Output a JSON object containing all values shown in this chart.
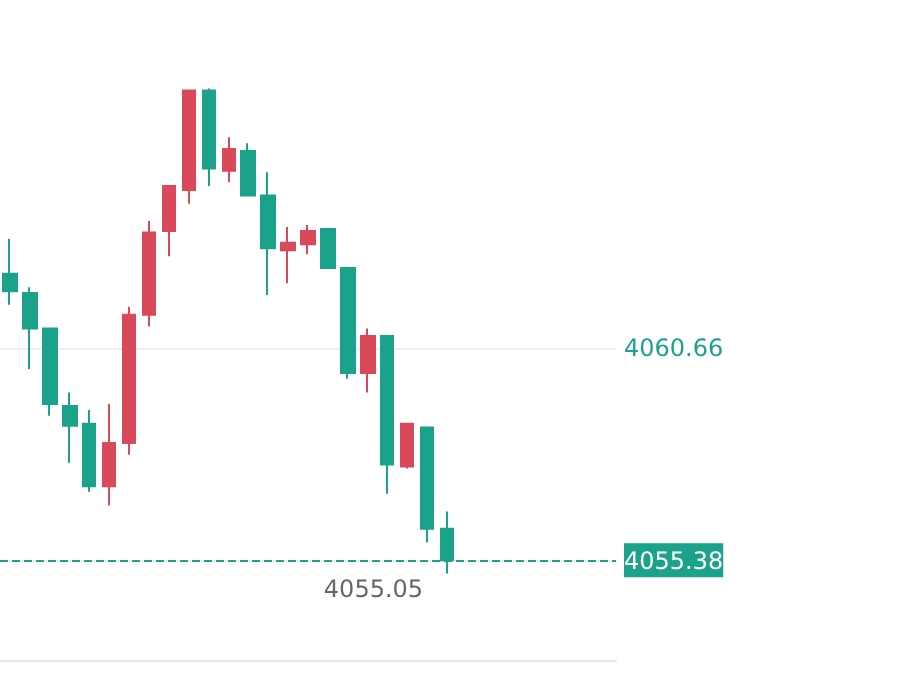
{
  "chart_data": {
    "type": "candlestick",
    "categories": [
      null,
      null,
      null,
      null,
      null,
      null,
      null,
      null,
      null,
      null,
      null,
      null,
      null,
      null,
      null,
      null,
      null,
      null,
      null,
      null,
      null,
      null,
      null,
      null,
      null,
      null,
      null,
      null,
      null,
      null,
      null
    ],
    "ohlc": [
      [
        4062.5,
        4063.37,
        4061.73,
        4062.06
      ],
      [
        4062.02,
        4062.16,
        4060.13,
        4061.14
      ],
      [
        4061.14,
        4061.14,
        4058.97,
        4059.26
      ],
      [
        4059.21,
        4059.55,
        4057.8,
        4058.72
      ],
      [
        4058.77,
        4059.11,
        4057.08,
        4057.22
      ],
      [
        4057.22,
        4059.26,
        4056.74,
        4058.29
      ],
      [
        4058.29,
        4061.68,
        4058.0,
        4061.48
      ],
      [
        4061.48,
        4063.81,
        4061.19,
        4063.52
      ],
      [
        4063.56,
        4064.68,
        4062.93,
        4064.68
      ],
      [
        4064.58,
        4067.05,
        4064.24,
        4067.05
      ],
      [
        4067.05,
        4067.1,
        4064.68,
        4065.11
      ],
      [
        4065.06,
        4065.89,
        4064.77,
        4065.6
      ],
      [
        4065.55,
        4065.74,
        4064.44,
        4064.44
      ],
      [
        4064.44,
        4065.02,
        4061.97,
        4063.13
      ],
      [
        4063.08,
        4063.66,
        4062.26,
        4063.27
      ],
      [
        4063.23,
        4063.71,
        4062.98,
        4063.56
      ],
      [
        4063.61,
        4063.61,
        4062.64,
        4062.64
      ],
      [
        4062.64,
        4062.64,
        4059.89,
        4060.03
      ],
      [
        4060.03,
        4061.14,
        4059.55,
        4060.95
      ],
      [
        4060.95,
        4060.95,
        4057.03,
        4057.76
      ],
      [
        4057.71,
        4058.77,
        4057.66,
        4058.77
      ],
      [
        4058.68,
        4058.68,
        4055.82,
        4056.16
      ],
      [
        4056.16,
        4056.59,
        4055.05,
        4055.38
      ],
      null,
      null,
      null,
      null,
      null,
      null,
      null,
      null
    ],
    "colors": [
      "#1aa38a",
      "#1aa38a",
      "#1aa38a",
      "#1aa38a",
      "#1aa38a",
      "#d9495a",
      "#d9495a",
      "#d9495a",
      "#d9495a",
      "#d9495a",
      "#1aa38a",
      "#d9495a",
      "#1aa38a",
      "#1aa38a",
      "#d9495a",
      "#d9495a",
      "#1aa38a",
      "#1aa38a",
      "#d9495a",
      "#1aa38a",
      "#d9495a",
      "#1aa38a",
      "#1aa38a",
      null,
      null,
      null,
      null,
      null,
      null,
      null,
      null
    ],
    "ylim": [
      4052.9,
      4069.3
    ],
    "yticks": [
      4055.38,
      4060.66
    ],
    "grid": "y",
    "ref_lines": [
      {
        "axis": "y",
        "value": 4055.38,
        "color": "#1aa38a",
        "line_style": "dashed"
      }
    ],
    "annotations": [
      "4055.05"
    ]
  }
}
